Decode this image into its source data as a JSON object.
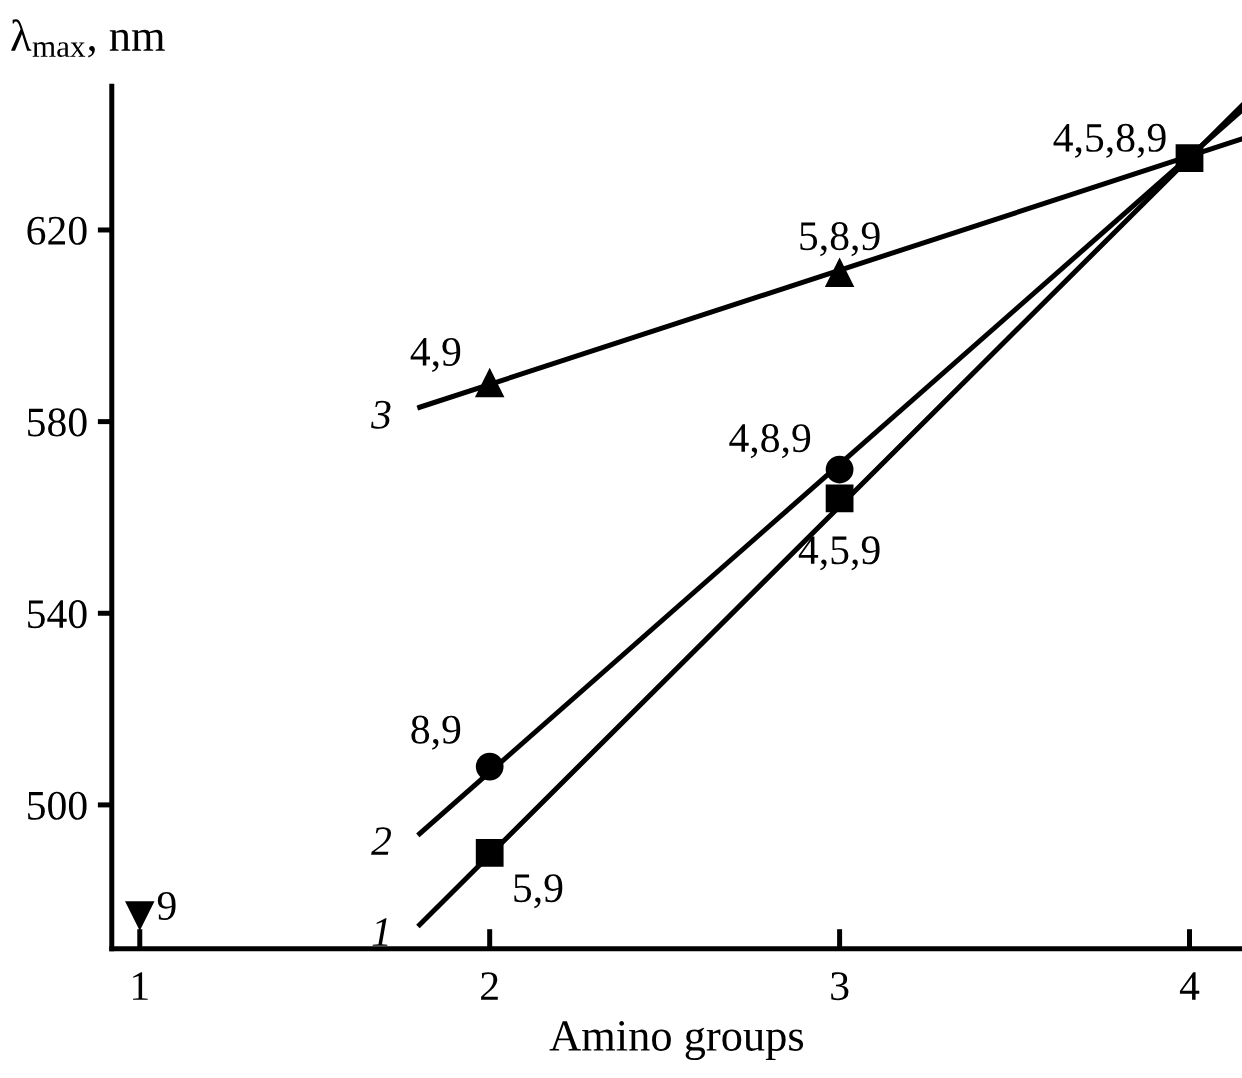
{
  "chart_data": {
    "type": "scatter",
    "xlabel": "Amino groups",
    "ylabel": "λ$_{max}$, nm",
    "xlim": [
      0.92,
      4.15
    ],
    "ylim": [
      470,
      650
    ],
    "xticks": [
      1,
      2,
      3,
      4
    ],
    "yticks": [
      500,
      540,
      580,
      620
    ],
    "grid": false,
    "legend": false,
    "series": [
      {
        "marker": "square",
        "color": "#000000",
        "x": [
          2,
          3,
          4
        ],
        "values": [
          490,
          564,
          635
        ]
      },
      {
        "marker": "circle",
        "color": "#000000",
        "x": [
          2,
          3
        ],
        "values": [
          508,
          570
        ]
      },
      {
        "marker": "triangle",
        "color": "#000000",
        "x": [
          2,
          3
        ],
        "values": [
          588,
          611
        ]
      },
      {
        "marker": "triangle_down",
        "color": "#000000",
        "x": [
          1
        ],
        "values": [
          477
        ]
      },
      {
        "type": "line",
        "marker": "none",
        "color": "#000000",
        "x": [
          1.8,
          4.15
        ],
        "values": [
          475,
          646
        ]
      },
      {
        "type": "line",
        "marker": "none",
        "color": "#000000",
        "x": [
          1.8,
          4.15
        ],
        "values": [
          494,
          645
        ]
      },
      {
        "type": "line",
        "marker": "none",
        "color": "#000000",
        "x": [
          1.8,
          4.15
        ],
        "values": [
          583,
          639
        ]
      }
    ],
    "annotations": [
      {
        "text": "5,9",
        "x": 2,
        "y": 490
      },
      {
        "text": "4,5,9",
        "x": 3,
        "y": 564
      },
      {
        "text": "4,5,8,9",
        "x": 4,
        "y": 635
      },
      {
        "text": "8,9",
        "x": 2,
        "y": 508
      },
      {
        "text": "4,8,9",
        "x": 3,
        "y": 570
      },
      {
        "text": "4,9",
        "x": 2,
        "y": 588
      },
      {
        "text": "5,8,9",
        "x": 3,
        "y": 611
      },
      {
        "text": "9",
        "x": 1,
        "y": 477
      },
      {
        "text": "1",
        "x": 1.8,
        "y": 475
      },
      {
        "text": "2",
        "x": 1.8,
        "y": 494
      },
      {
        "text": "3",
        "x": 1.8,
        "y": 583
      }
    ]
  }
}
